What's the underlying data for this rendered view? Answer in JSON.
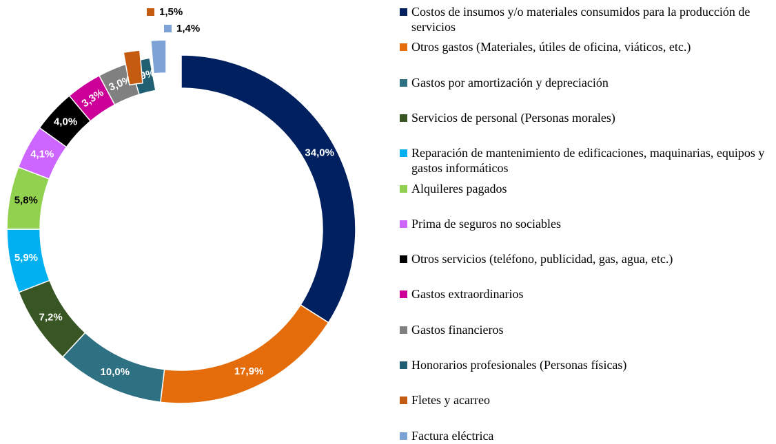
{
  "chart_data": {
    "type": "donut",
    "categories": [
      "Costos  de insumos y/o materiales consumidos para la producción de servicios",
      "Otros gastos (Materiales, útiles de oficina, viáticos, etc.)",
      "Gastos por amortización  y depreciación",
      "Servicios de personal (Personas morales)",
      "Reparación de mantenimiento de edificaciones, maquinarias, equipos y gastos informáticos",
      "Alquileres pagados",
      "Prima de seguros no sociables",
      "Otros servicios  (teléfono, publicidad, gas, agua, etc.)",
      "Gastos extraordinarios",
      "Gastos financieros",
      "Honorarios profesionales (Personas físicas)",
      "Fletes y acarreo",
      "Factura eléctrica"
    ],
    "values": [
      34.0,
      17.9,
      10.0,
      7.2,
      5.9,
      5.8,
      4.1,
      4.0,
      3.3,
      3.0,
      1.9,
      1.5,
      1.4
    ],
    "value_labels": [
      "34,0%",
      "17,9%",
      "10,0%",
      "7,2%",
      "5,9%",
      "5,8%",
      "4,1%",
      "4,0%",
      "3,3%",
      "3,0%",
      "1,9%",
      "1,5%",
      "1,4%"
    ],
    "colors": [
      "#002060",
      "#e46c0a",
      "#2e7183",
      "#375623",
      "#00b0f0",
      "#92d050",
      "#cc66ff",
      "#000000",
      "#cc0099",
      "#808080",
      "#215f73",
      "#c55a11",
      "#7da2d6"
    ],
    "legend": "right"
  }
}
